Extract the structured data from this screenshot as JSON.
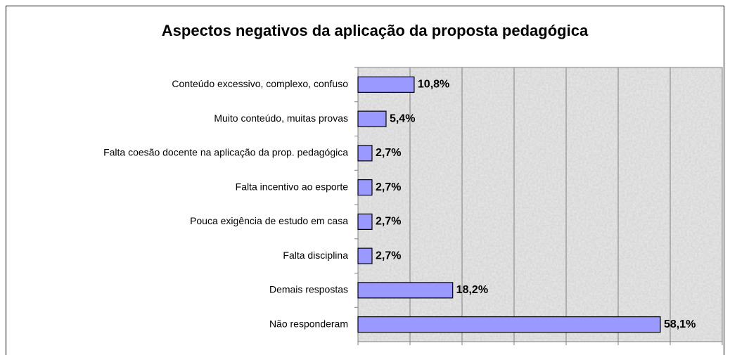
{
  "chart_data": {
    "type": "barh",
    "title": "Aspectos negativos da aplicação da proposta pedagógica",
    "categories": [
      "Conteúdo excessivo, complexo, confuso",
      "Muito conteúdo, muitas provas",
      "Falta coesão docente na aplicação da prop. pedagógica",
      "Falta incentivo ao esporte",
      "Pouca exigência de estudo em casa",
      "Falta disciplina",
      "Demais respostas",
      "Não responderam"
    ],
    "values": [
      10.8,
      5.4,
      2.7,
      2.7,
      2.7,
      2.7,
      18.2,
      58.1
    ],
    "value_labels": [
      "10,8%",
      "5,4%",
      "2,7%",
      "2,7%",
      "2,7%",
      "2,7%",
      "18,2%",
      "58,1%"
    ],
    "color": "#9999ff",
    "xlim": [
      0,
      70
    ],
    "xticks": [
      0,
      10,
      20,
      30,
      40,
      50,
      60,
      70
    ],
    "grid": true
  }
}
